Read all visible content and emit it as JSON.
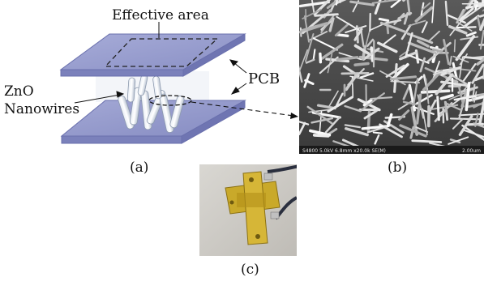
{
  "panel_a": {
    "effective_area_label": "Effective area",
    "pcb_label": "PCB",
    "nanowires_label_line1": "ZnO",
    "nanowires_label_line2": "Nanowires",
    "caption": "(a)",
    "board_color": "#8f95c9",
    "board_edge_color": "#5f66a8"
  },
  "panel_b": {
    "caption": "(b)",
    "sem_info": "S4800 5.0kV 6.8mm x20.0k SE(M)",
    "scale_label": "2.00um"
  },
  "panel_c": {
    "caption": "(c)"
  }
}
